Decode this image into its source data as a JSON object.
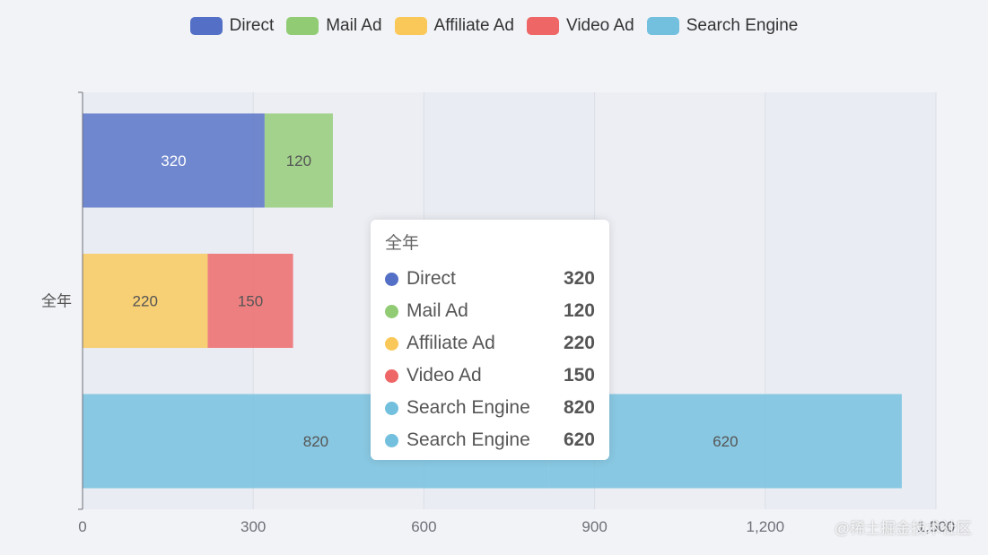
{
  "colors": {
    "Direct": "#5470c6",
    "Mail Ad": "#91cc75",
    "Affiliate Ad": "#fac858",
    "Video Ad": "#ee6666",
    "Search Engine": "#73c0de",
    "plot_band": "#e9ecf2",
    "grid": "#dcdfe6",
    "axis": "#6e7079"
  },
  "chart_data": {
    "type": "bar",
    "orientation": "horizontal",
    "category": "全年",
    "xlim": [
      0,
      1500
    ],
    "x_ticks": [
      0,
      300,
      600,
      900,
      1200,
      1500
    ],
    "x_tick_labels": [
      "0",
      "300",
      "600",
      "900",
      "1,200",
      "1,500"
    ],
    "grid": true,
    "legend_position": "top-center",
    "bars": [
      {
        "segments": [
          {
            "series": "Direct",
            "value": 320
          },
          {
            "series": "Mail Ad",
            "value": 120
          }
        ]
      },
      {
        "segments": [
          {
            "series": "Affiliate Ad",
            "value": 220
          },
          {
            "series": "Video Ad",
            "value": 150
          }
        ]
      },
      {
        "segments": [
          {
            "series": "Search Engine",
            "value": 820
          },
          {
            "series": "Search Engine",
            "value": 620
          }
        ]
      }
    ]
  },
  "legend": {
    "items": [
      {
        "label": "Direct",
        "color": "#5470c6"
      },
      {
        "label": "Mail Ad",
        "color": "#91cc75"
      },
      {
        "label": "Affiliate Ad",
        "color": "#fac858"
      },
      {
        "label": "Video Ad",
        "color": "#ee6666"
      },
      {
        "label": "Search Engine",
        "color": "#73c0de"
      }
    ]
  },
  "tooltip": {
    "title": "全年",
    "rows": [
      {
        "name": "Direct",
        "value": "320",
        "color": "#5470c6"
      },
      {
        "name": "Mail Ad",
        "value": "120",
        "color": "#91cc75"
      },
      {
        "name": "Affiliate Ad",
        "value": "220",
        "color": "#fac858"
      },
      {
        "name": "Video Ad",
        "value": "150",
        "color": "#ee6666"
      },
      {
        "name": "Search Engine",
        "value": "820",
        "color": "#73c0de"
      },
      {
        "name": "Search Engine",
        "value": "620",
        "color": "#73c0de"
      }
    ]
  },
  "watermark": "@稀土掘金技术社区"
}
